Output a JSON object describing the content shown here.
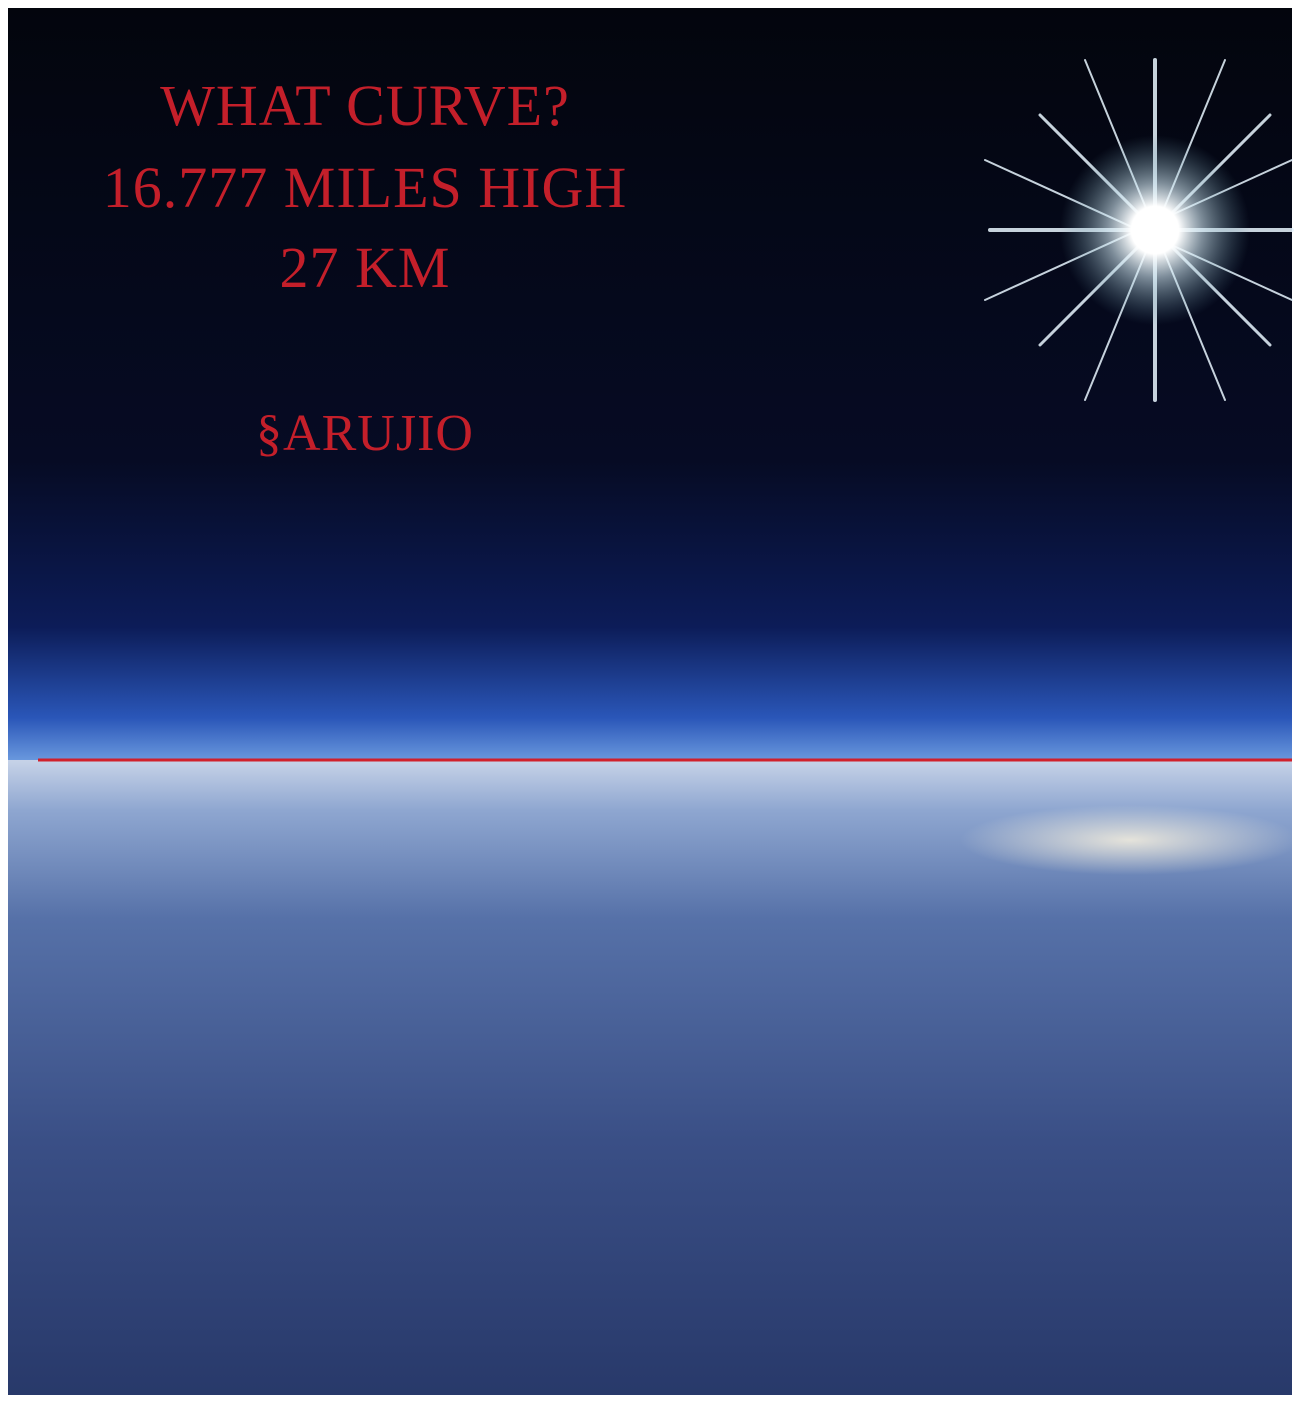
{
  "caption": {
    "lines": [
      "WHAT CURVE?",
      "16.777 MILES HIGH",
      "27 KM"
    ],
    "signature": "§ARUJIO"
  }
}
